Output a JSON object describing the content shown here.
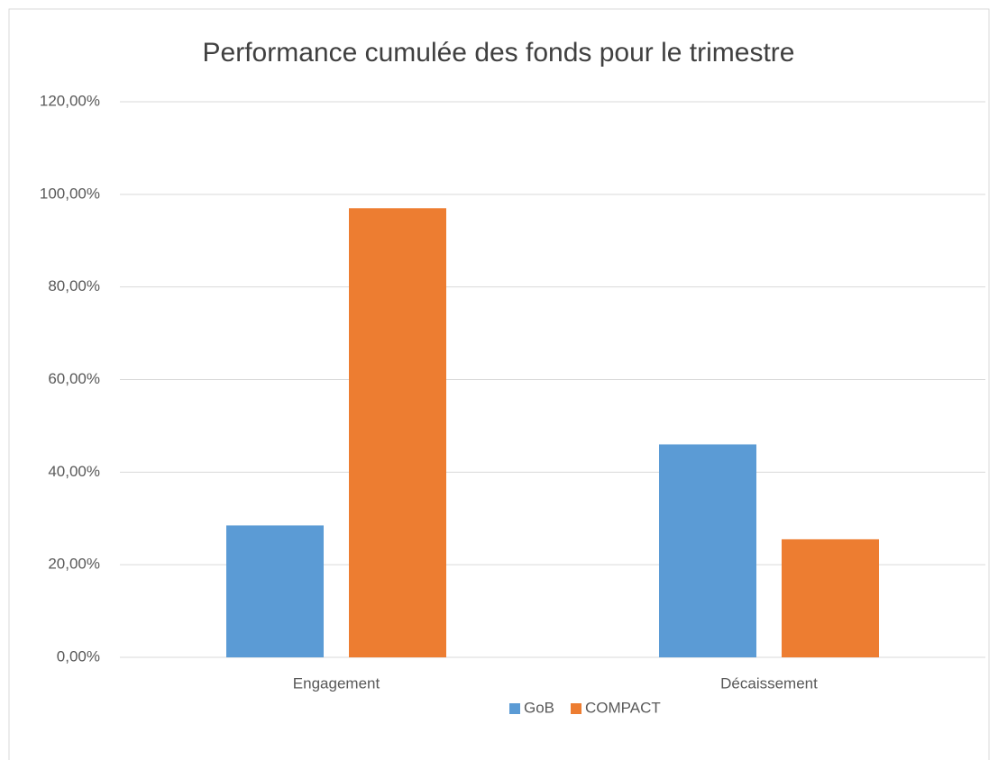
{
  "chart_data": {
    "type": "bar",
    "title": "Performance cumulée des fonds pour le trimestre",
    "categories": [
      "Engagement",
      "Décaissement"
    ],
    "series": [
      {
        "name": "GoB",
        "color": "#5b9bd5",
        "values": [
          28.5,
          46
        ]
      },
      {
        "name": "COMPACT",
        "color": "#ed7d31",
        "values": [
          97,
          25.5
        ]
      }
    ],
    "ylim": [
      0,
      120
    ],
    "yticks": [
      {
        "value": 0,
        "label": "0,00%"
      },
      {
        "value": 20,
        "label": "20,00%"
      },
      {
        "value": 40,
        "label": "40,00%"
      },
      {
        "value": 60,
        "label": "60,00%"
      },
      {
        "value": 80,
        "label": "80,00%"
      },
      {
        "value": 100,
        "label": "100,00%"
      },
      {
        "value": 120,
        "label": "120,00%"
      }
    ],
    "grid": true,
    "legend": "bottom"
  }
}
